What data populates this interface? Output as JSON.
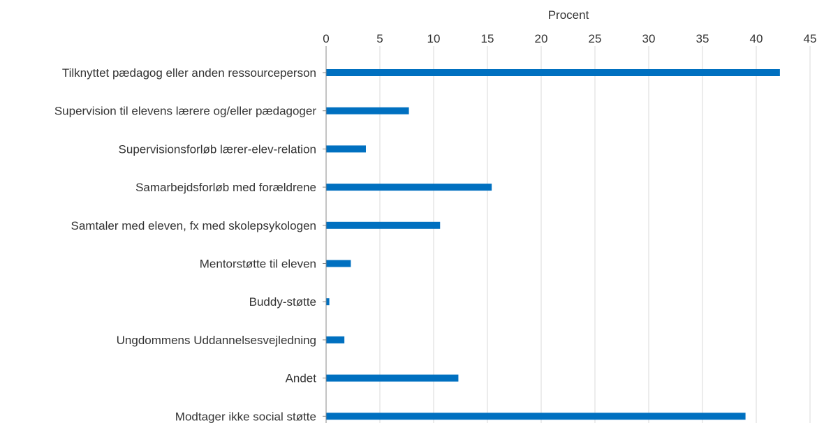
{
  "chart_data": {
    "type": "bar",
    "orientation": "horizontal",
    "title": "",
    "xlabel": "Procent",
    "ylabel": "",
    "x_axis_position": "top",
    "xlim": [
      0,
      45
    ],
    "xticks": [
      0,
      5,
      10,
      15,
      20,
      25,
      30,
      35,
      40,
      45
    ],
    "grid": true,
    "legend": "none",
    "bar_color": "#0070C0",
    "grid_color": "#D9D9D9",
    "categories": [
      "Tilknyttet pædagog eller anden ressourceperson",
      "Supervision til elevens lærere og/eller pædagoger",
      "Supervisionsforløb lærer-elev-relation",
      "Samarbejdsforløb med forældrene",
      "Samtaler med eleven, fx med skolepsykologen",
      "Mentorstøtte til eleven",
      "Buddy-støtte",
      "Ungdommens Uddannelsesvejledning",
      "Andet",
      "Modtager ikke social støtte"
    ],
    "values": [
      42.2,
      7.7,
      3.7,
      15.4,
      10.6,
      2.3,
      0.3,
      1.7,
      12.3,
      39.0
    ]
  }
}
